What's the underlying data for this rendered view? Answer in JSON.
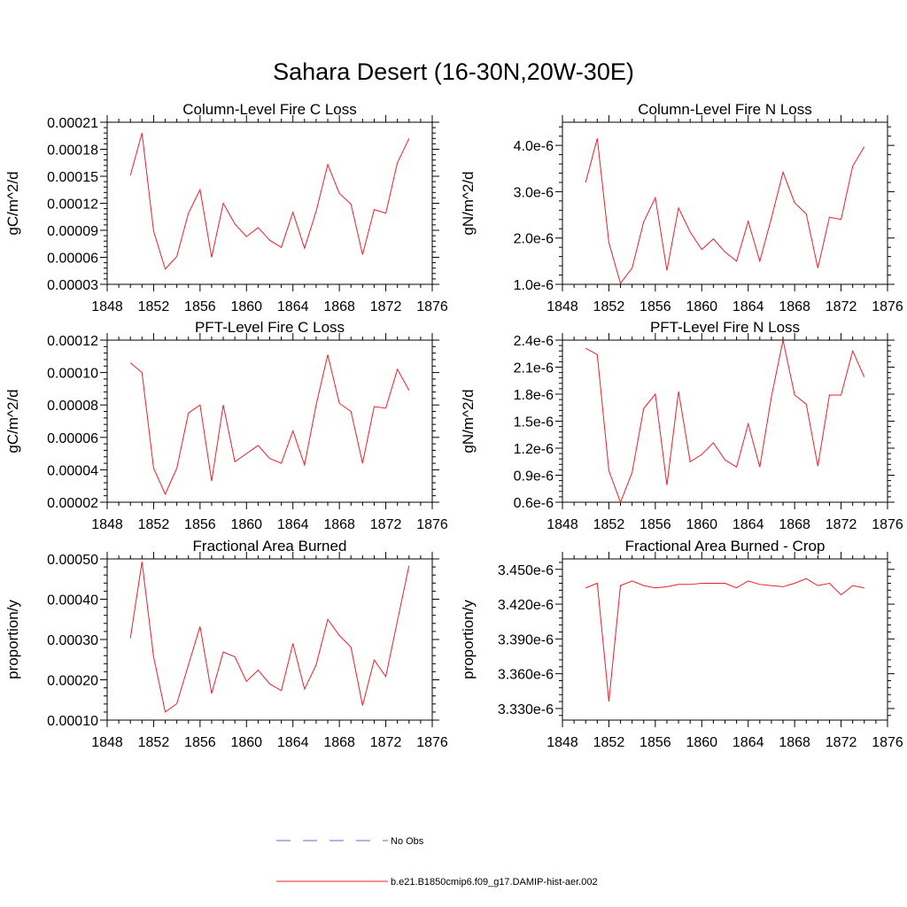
{
  "figure": {
    "title": "Sahara Desert (16-30N,20W-30E)"
  },
  "legend": {
    "entries": [
      {
        "label": "No Obs",
        "color": "#5b6fb8",
        "style": "dashed"
      },
      {
        "label": "b.e21.B1850cmip6.f09_g17.DAMIP-hist-aer.002",
        "color": "#e8202a",
        "style": "solid"
      }
    ]
  },
  "chart_data": [
    {
      "type": "line",
      "title": "Column-Level Fire C Loss",
      "xlabel": "",
      "ylabel": "gC/m^2/d",
      "xlim": [
        1848,
        1876
      ],
      "ylim": [
        3e-05,
        0.00021
      ],
      "xticks": [
        1848,
        1852,
        1856,
        1860,
        1864,
        1868,
        1872,
        1876
      ],
      "yticks": [
        3e-05,
        6e-05,
        9e-05,
        0.00012,
        0.00015,
        0.00018,
        0.00021
      ],
      "ytick_labels": [
        "0.00003",
        "0.00006",
        "0.00009",
        "0.00012",
        "0.00015",
        "0.00018",
        "0.00021"
      ],
      "x": [
        1850,
        1851,
        1852,
        1853,
        1854,
        1855,
        1856,
        1857,
        1858,
        1859,
        1860,
        1861,
        1862,
        1863,
        1864,
        1865,
        1866,
        1867,
        1868,
        1869,
        1870,
        1871,
        1872,
        1873,
        1874
      ],
      "series": [
        {
          "values": [
            0.000151,
            0.000198,
            8.9e-05,
            4.7e-05,
            6.1e-05,
            0.000109,
            0.000135,
            6e-05,
            0.00012,
            9.7e-05,
            8.3e-05,
            9.3e-05,
            7.9e-05,
            7.1e-05,
            0.00011,
            7e-05,
            0.000111,
            0.000163,
            0.000131,
            0.000119,
            6.3e-05,
            0.000113,
            0.000109,
            0.000165,
            0.000192
          ]
        }
      ]
    },
    {
      "type": "line",
      "title": "Column-Level Fire N Loss",
      "xlabel": "",
      "ylabel": "gN/m^2/d",
      "xlim": [
        1848,
        1876
      ],
      "ylim": [
        1e-06,
        4.5e-06
      ],
      "xticks": [
        1848,
        1852,
        1856,
        1860,
        1864,
        1868,
        1872,
        1876
      ],
      "yticks": [
        1e-06,
        2e-06,
        3e-06,
        4e-06
      ],
      "ytick_labels": [
        "1.0e-6",
        "2.0e-6",
        "3.0e-6",
        "4.0e-6"
      ],
      "x": [
        1850,
        1851,
        1852,
        1853,
        1854,
        1855,
        1856,
        1857,
        1858,
        1859,
        1860,
        1861,
        1862,
        1863,
        1864,
        1865,
        1866,
        1867,
        1868,
        1869,
        1870,
        1871,
        1872,
        1873,
        1874
      ],
      "series": [
        {
          "values": [
            3.2e-06,
            4.15e-06,
            1.9e-06,
            1.02e-06,
            1.35e-06,
            2.35e-06,
            2.87e-06,
            1.3e-06,
            2.65e-06,
            2.13e-06,
            1.75e-06,
            1.98e-06,
            1.7e-06,
            1.5e-06,
            2.36e-06,
            1.5e-06,
            2.43e-06,
            3.42e-06,
            2.76e-06,
            2.52e-06,
            1.35e-06,
            2.45e-06,
            2.4e-06,
            3.55e-06,
            3.97e-06
          ]
        }
      ]
    },
    {
      "type": "line",
      "title": "PFT-Level Fire C Loss",
      "xlabel": "",
      "ylabel": "gC/m^2/d",
      "xlim": [
        1848,
        1876
      ],
      "ylim": [
        2e-05,
        0.00012
      ],
      "xticks": [
        1848,
        1852,
        1856,
        1860,
        1864,
        1868,
        1872,
        1876
      ],
      "yticks": [
        2e-05,
        4e-05,
        6e-05,
        8e-05,
        0.0001,
        0.00012
      ],
      "ytick_labels": [
        "0.00002",
        "0.00004",
        "0.00006",
        "0.00008",
        "0.00010",
        "0.00012"
      ],
      "x": [
        1850,
        1851,
        1852,
        1853,
        1854,
        1855,
        1856,
        1857,
        1858,
        1859,
        1860,
        1861,
        1862,
        1863,
        1864,
        1865,
        1866,
        1867,
        1868,
        1869,
        1870,
        1871,
        1872,
        1873,
        1874
      ],
      "series": [
        {
          "values": [
            0.000106,
            0.0001,
            4.1e-05,
            2.5e-05,
            4.1e-05,
            7.5e-05,
            8e-05,
            3.3e-05,
            8e-05,
            4.5e-05,
            5e-05,
            5.5e-05,
            4.7e-05,
            4.4e-05,
            6.4e-05,
            4.3e-05,
            8e-05,
            0.000111,
            8.1e-05,
            7.6e-05,
            4.4e-05,
            7.9e-05,
            7.8e-05,
            0.000102,
            8.9e-05
          ]
        }
      ]
    },
    {
      "type": "line",
      "title": "PFT-Level Fire N Loss",
      "xlabel": "",
      "ylabel": "gN/m^2/d",
      "xlim": [
        1848,
        1876
      ],
      "ylim": [
        6e-07,
        2.4e-06
      ],
      "xticks": [
        1848,
        1852,
        1856,
        1860,
        1864,
        1868,
        1872,
        1876
      ],
      "yticks": [
        6e-07,
        9e-07,
        1.2e-06,
        1.5e-06,
        1.8e-06,
        2.1e-06,
        2.4e-06
      ],
      "ytick_labels": [
        "0.6e-6",
        "0.9e-6",
        "1.2e-6",
        "1.5e-6",
        "1.8e-6",
        "2.1e-6",
        "2.4e-6"
      ],
      "x": [
        1850,
        1851,
        1852,
        1853,
        1854,
        1855,
        1856,
        1857,
        1858,
        1859,
        1860,
        1861,
        1862,
        1863,
        1864,
        1865,
        1866,
        1867,
        1868,
        1869,
        1870,
        1871,
        1872,
        1873,
        1874
      ],
      "series": [
        {
          "values": [
            2.31e-06,
            2.24e-06,
            9.5e-07,
            6e-07,
            9.3e-07,
            1.64e-06,
            1.8e-06,
            7.9e-07,
            1.83e-06,
            1.05e-06,
            1.13e-06,
            1.26e-06,
            1.07e-06,
            9.9e-07,
            1.47e-06,
            9.9e-07,
            1.77e-06,
            2.4e-06,
            1.79e-06,
            1.69e-06,
            1e-06,
            1.79e-06,
            1.79e-06,
            2.28e-06,
            1.99e-06
          ]
        }
      ]
    },
    {
      "type": "line",
      "title": "Fractional Area Burned",
      "xlabel": "",
      "ylabel": "proportion/y",
      "xlim": [
        1848,
        1876
      ],
      "ylim": [
        0.0001,
        0.0005
      ],
      "xticks": [
        1848,
        1852,
        1856,
        1860,
        1864,
        1868,
        1872,
        1876
      ],
      "yticks": [
        0.0001,
        0.0002,
        0.0003,
        0.0004,
        0.0005
      ],
      "ytick_labels": [
        "0.00010",
        "0.00020",
        "0.00030",
        "0.00040",
        "0.00050"
      ],
      "x": [
        1850,
        1851,
        1852,
        1853,
        1854,
        1855,
        1856,
        1857,
        1858,
        1859,
        1860,
        1861,
        1862,
        1863,
        1864,
        1865,
        1866,
        1867,
        1868,
        1869,
        1870,
        1871,
        1872,
        1873,
        1874
      ],
      "series": [
        {
          "values": [
            0.000303,
            0.000493,
            0.000257,
            0.00012,
            0.000141,
            0.000237,
            0.000332,
            0.000166,
            0.000269,
            0.000257,
            0.000196,
            0.000224,
            0.00019,
            0.000173,
            0.00029,
            0.000177,
            0.000237,
            0.00035,
            0.00031,
            0.000281,
            0.000136,
            0.000249,
            0.000208,
            0.000346,
            0.000483
          ]
        }
      ]
    },
    {
      "type": "line",
      "title": "Fractional Area Burned - Crop",
      "xlabel": "",
      "ylabel": "proportion/y",
      "xlim": [
        1848,
        1876
      ],
      "ylim": [
        3.32e-06,
        3.459e-06
      ],
      "xticks": [
        1848,
        1852,
        1856,
        1860,
        1864,
        1868,
        1872,
        1876
      ],
      "yticks": [
        3.33e-06,
        3.36e-06,
        3.39e-06,
        3.42e-06,
        3.45e-06
      ],
      "ytick_labels": [
        "3.330e-6",
        "3.360e-6",
        "3.390e-6",
        "3.420e-6",
        "3.450e-6"
      ],
      "x": [
        1850,
        1851,
        1852,
        1853,
        1854,
        1855,
        1856,
        1857,
        1858,
        1859,
        1860,
        1861,
        1862,
        1863,
        1864,
        1865,
        1866,
        1867,
        1868,
        1869,
        1870,
        1871,
        1872,
        1873,
        1874
      ],
      "series": [
        {
          "values": [
            3.434e-06,
            3.438e-06,
            3.336e-06,
            3.436e-06,
            3.44e-06,
            3.436e-06,
            3.434e-06,
            3.435e-06,
            3.437e-06,
            3.437e-06,
            3.438e-06,
            3.438e-06,
            3.438e-06,
            3.434e-06,
            3.44e-06,
            3.437e-06,
            3.436e-06,
            3.435e-06,
            3.438e-06,
            3.442e-06,
            3.436e-06,
            3.438e-06,
            3.428e-06,
            3.436e-06,
            3.434e-06
          ]
        }
      ]
    }
  ]
}
